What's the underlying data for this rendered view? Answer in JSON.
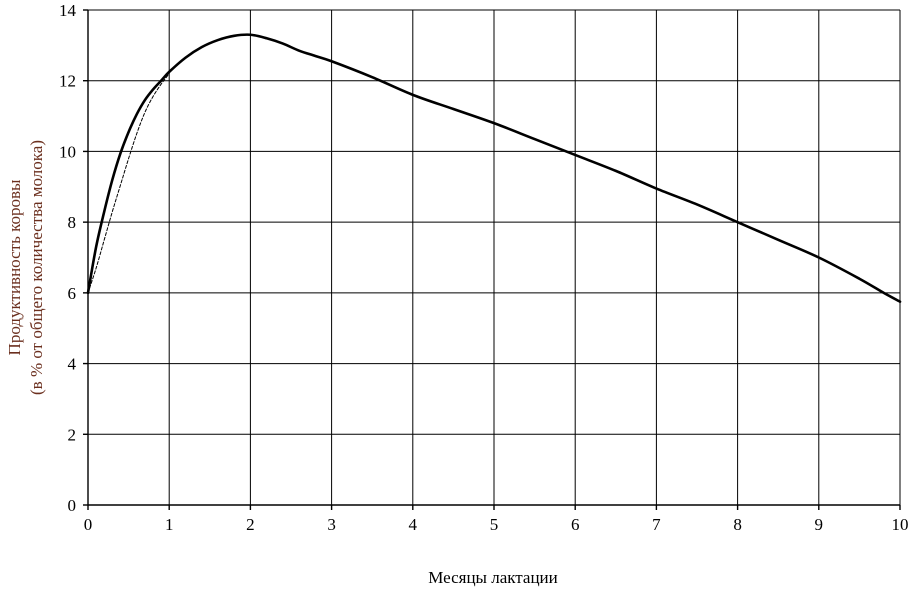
{
  "chart_data": {
    "type": "line",
    "title": "",
    "xlabel": "Месяцы лактации",
    "ylabel_lines": [
      "Продуктивность коровы",
      "(в %  от общего количества молока)"
    ],
    "xlim": [
      0,
      10
    ],
    "ylim": [
      0,
      14
    ],
    "xticks": [
      0,
      1,
      2,
      3,
      4,
      5,
      6,
      7,
      8,
      9,
      10
    ],
    "yticks": [
      0,
      2,
      4,
      6,
      8,
      10,
      12,
      14
    ],
    "grid": true,
    "legend": "none",
    "series": [
      {
        "style": "solid",
        "x": [
          0,
          0.1,
          0.2,
          0.3,
          0.4,
          0.5,
          0.6,
          0.7,
          0.8,
          0.9,
          1.0,
          1.2,
          1.4,
          1.6,
          1.8,
          2.0,
          2.2,
          2.4,
          2.6,
          2.8,
          3.0,
          3.5,
          4.0,
          4.5,
          5.0,
          5.5,
          6.0,
          6.5,
          7.0,
          7.5,
          8.0,
          8.5,
          9.0,
          9.5,
          9.8,
          10.0
        ],
        "y": [
          6.0,
          7.3,
          8.3,
          9.2,
          9.95,
          10.55,
          11.05,
          11.45,
          11.75,
          12.0,
          12.25,
          12.65,
          12.95,
          13.15,
          13.27,
          13.3,
          13.2,
          13.05,
          12.85,
          12.7,
          12.55,
          12.1,
          11.6,
          11.2,
          10.8,
          10.35,
          9.9,
          9.45,
          8.95,
          8.5,
          8.0,
          7.5,
          7.0,
          6.4,
          6.0,
          5.75
        ]
      },
      {
        "style": "dashed",
        "x": [
          0,
          0.1,
          0.2,
          0.3,
          0.4,
          0.5,
          0.6,
          0.7,
          0.8,
          0.9,
          1.0
        ],
        "y": [
          6.0,
          6.7,
          7.5,
          8.3,
          9.05,
          9.8,
          10.5,
          11.1,
          11.55,
          11.9,
          12.2
        ]
      }
    ]
  }
}
